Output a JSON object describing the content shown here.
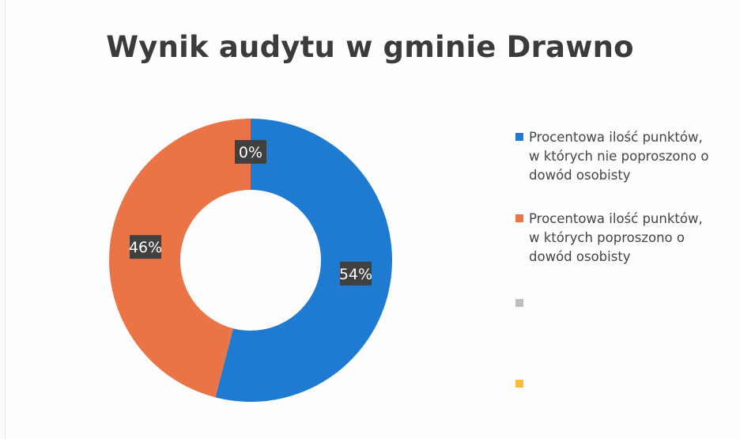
{
  "chart_data": {
    "type": "donut",
    "title": "Wynik audytu w gminie Drawno",
    "legend_position": "right",
    "series": [
      {
        "name": "Procentowa ilość punktów,\nw których nie poproszono o\ndowód osobisty",
        "value": 54,
        "label": "54%",
        "color": "#1f7bd1"
      },
      {
        "name": "Procentowa ilość punktów,\nw których poproszono o\ndowód osobisty",
        "value": 46,
        "label": "46%",
        "color": "#ea7446"
      },
      {
        "name": "",
        "value": 0,
        "label": "0%",
        "color": "#bdbdbd"
      },
      {
        "name": "",
        "value": 0,
        "label": "",
        "color": "#f6bd3e"
      }
    ]
  },
  "label_box_color": "#404040",
  "label_text_color": "#ffffff"
}
